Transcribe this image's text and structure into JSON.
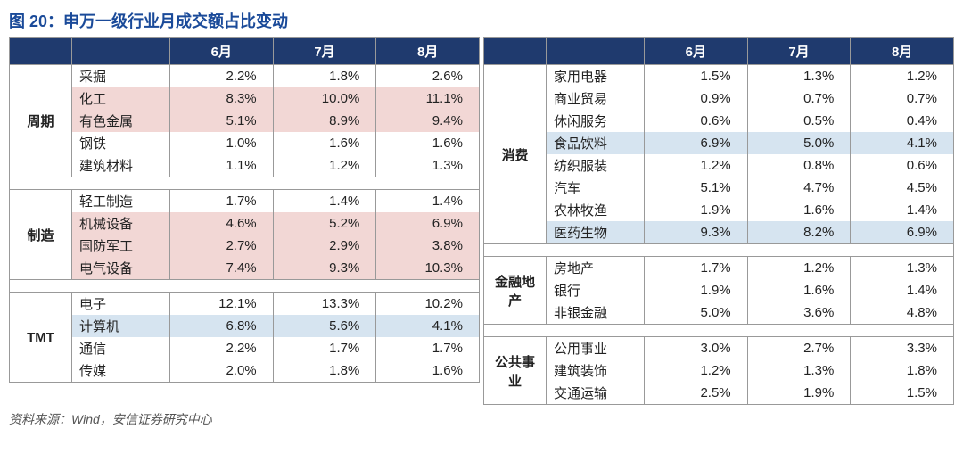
{
  "title": "图 20：申万一级行业月成交额占比变动",
  "source": "资料来源：Wind，安信证券研究中心",
  "months": [
    "6月",
    "7月",
    "8月"
  ],
  "colors": {
    "header_bg": "#1f3a6e",
    "header_fg": "#ffffff",
    "title_color": "#1a4a99",
    "highlight_pink": "#f2d7d5",
    "highlight_blue": "#d6e4f0",
    "border": "#999999"
  },
  "left": [
    {
      "category": "周期",
      "rows": [
        {
          "name": "采掘",
          "vals": [
            "2.2%",
            "1.8%",
            "2.6%"
          ],
          "hl": "none"
        },
        {
          "name": "化工",
          "vals": [
            "8.3%",
            "10.0%",
            "11.1%"
          ],
          "hl": "pink"
        },
        {
          "name": "有色金属",
          "vals": [
            "5.1%",
            "8.9%",
            "9.4%"
          ],
          "hl": "pink"
        },
        {
          "name": "钢铁",
          "vals": [
            "1.0%",
            "1.6%",
            "1.6%"
          ],
          "hl": "none"
        },
        {
          "name": "建筑材料",
          "vals": [
            "1.1%",
            "1.2%",
            "1.3%"
          ],
          "hl": "none"
        }
      ]
    },
    {
      "category": "制造",
      "rows": [
        {
          "name": "轻工制造",
          "vals": [
            "1.7%",
            "1.4%",
            "1.4%"
          ],
          "hl": "none"
        },
        {
          "name": "机械设备",
          "vals": [
            "4.6%",
            "5.2%",
            "6.9%"
          ],
          "hl": "pink"
        },
        {
          "name": "国防军工",
          "vals": [
            "2.7%",
            "2.9%",
            "3.8%"
          ],
          "hl": "pink"
        },
        {
          "name": "电气设备",
          "vals": [
            "7.4%",
            "9.3%",
            "10.3%"
          ],
          "hl": "pink"
        }
      ]
    },
    {
      "category": "TMT",
      "rows": [
        {
          "name": "电子",
          "vals": [
            "12.1%",
            "13.3%",
            "10.2%"
          ],
          "hl": "none"
        },
        {
          "name": "计算机",
          "vals": [
            "6.8%",
            "5.6%",
            "4.1%"
          ],
          "hl": "blue"
        },
        {
          "name": "通信",
          "vals": [
            "2.2%",
            "1.7%",
            "1.7%"
          ],
          "hl": "none"
        },
        {
          "name": "传媒",
          "vals": [
            "2.0%",
            "1.8%",
            "1.6%"
          ],
          "hl": "none"
        }
      ]
    }
  ],
  "right": [
    {
      "category": "消费",
      "rows": [
        {
          "name": "家用电器",
          "vals": [
            "1.5%",
            "1.3%",
            "1.2%"
          ],
          "hl": "none"
        },
        {
          "name": "商业贸易",
          "vals": [
            "0.9%",
            "0.7%",
            "0.7%"
          ],
          "hl": "none"
        },
        {
          "name": "休闲服务",
          "vals": [
            "0.6%",
            "0.5%",
            "0.4%"
          ],
          "hl": "none"
        },
        {
          "name": "食品饮料",
          "vals": [
            "6.9%",
            "5.0%",
            "4.1%"
          ],
          "hl": "blue"
        },
        {
          "name": "纺织服装",
          "vals": [
            "1.2%",
            "0.8%",
            "0.6%"
          ],
          "hl": "none"
        },
        {
          "name": "汽车",
          "vals": [
            "5.1%",
            "4.7%",
            "4.5%"
          ],
          "hl": "none"
        },
        {
          "name": "农林牧渔",
          "vals": [
            "1.9%",
            "1.6%",
            "1.4%"
          ],
          "hl": "none"
        },
        {
          "name": "医药生物",
          "vals": [
            "9.3%",
            "8.2%",
            "6.9%"
          ],
          "hl": "blue"
        }
      ]
    },
    {
      "category": "金融地产",
      "rows": [
        {
          "name": "房地产",
          "vals": [
            "1.7%",
            "1.2%",
            "1.3%"
          ],
          "hl": "none"
        },
        {
          "name": "银行",
          "vals": [
            "1.9%",
            "1.6%",
            "1.4%"
          ],
          "hl": "none"
        },
        {
          "name": "非银金融",
          "vals": [
            "5.0%",
            "3.6%",
            "4.8%"
          ],
          "hl": "none"
        }
      ]
    },
    {
      "category": "公共事业",
      "rows": [
        {
          "name": "公用事业",
          "vals": [
            "3.0%",
            "2.7%",
            "3.3%"
          ],
          "hl": "none"
        },
        {
          "name": "建筑装饰",
          "vals": [
            "1.2%",
            "1.3%",
            "1.8%"
          ],
          "hl": "none"
        },
        {
          "name": "交通运输",
          "vals": [
            "2.5%",
            "1.9%",
            "1.5%"
          ],
          "hl": "none"
        }
      ]
    }
  ]
}
